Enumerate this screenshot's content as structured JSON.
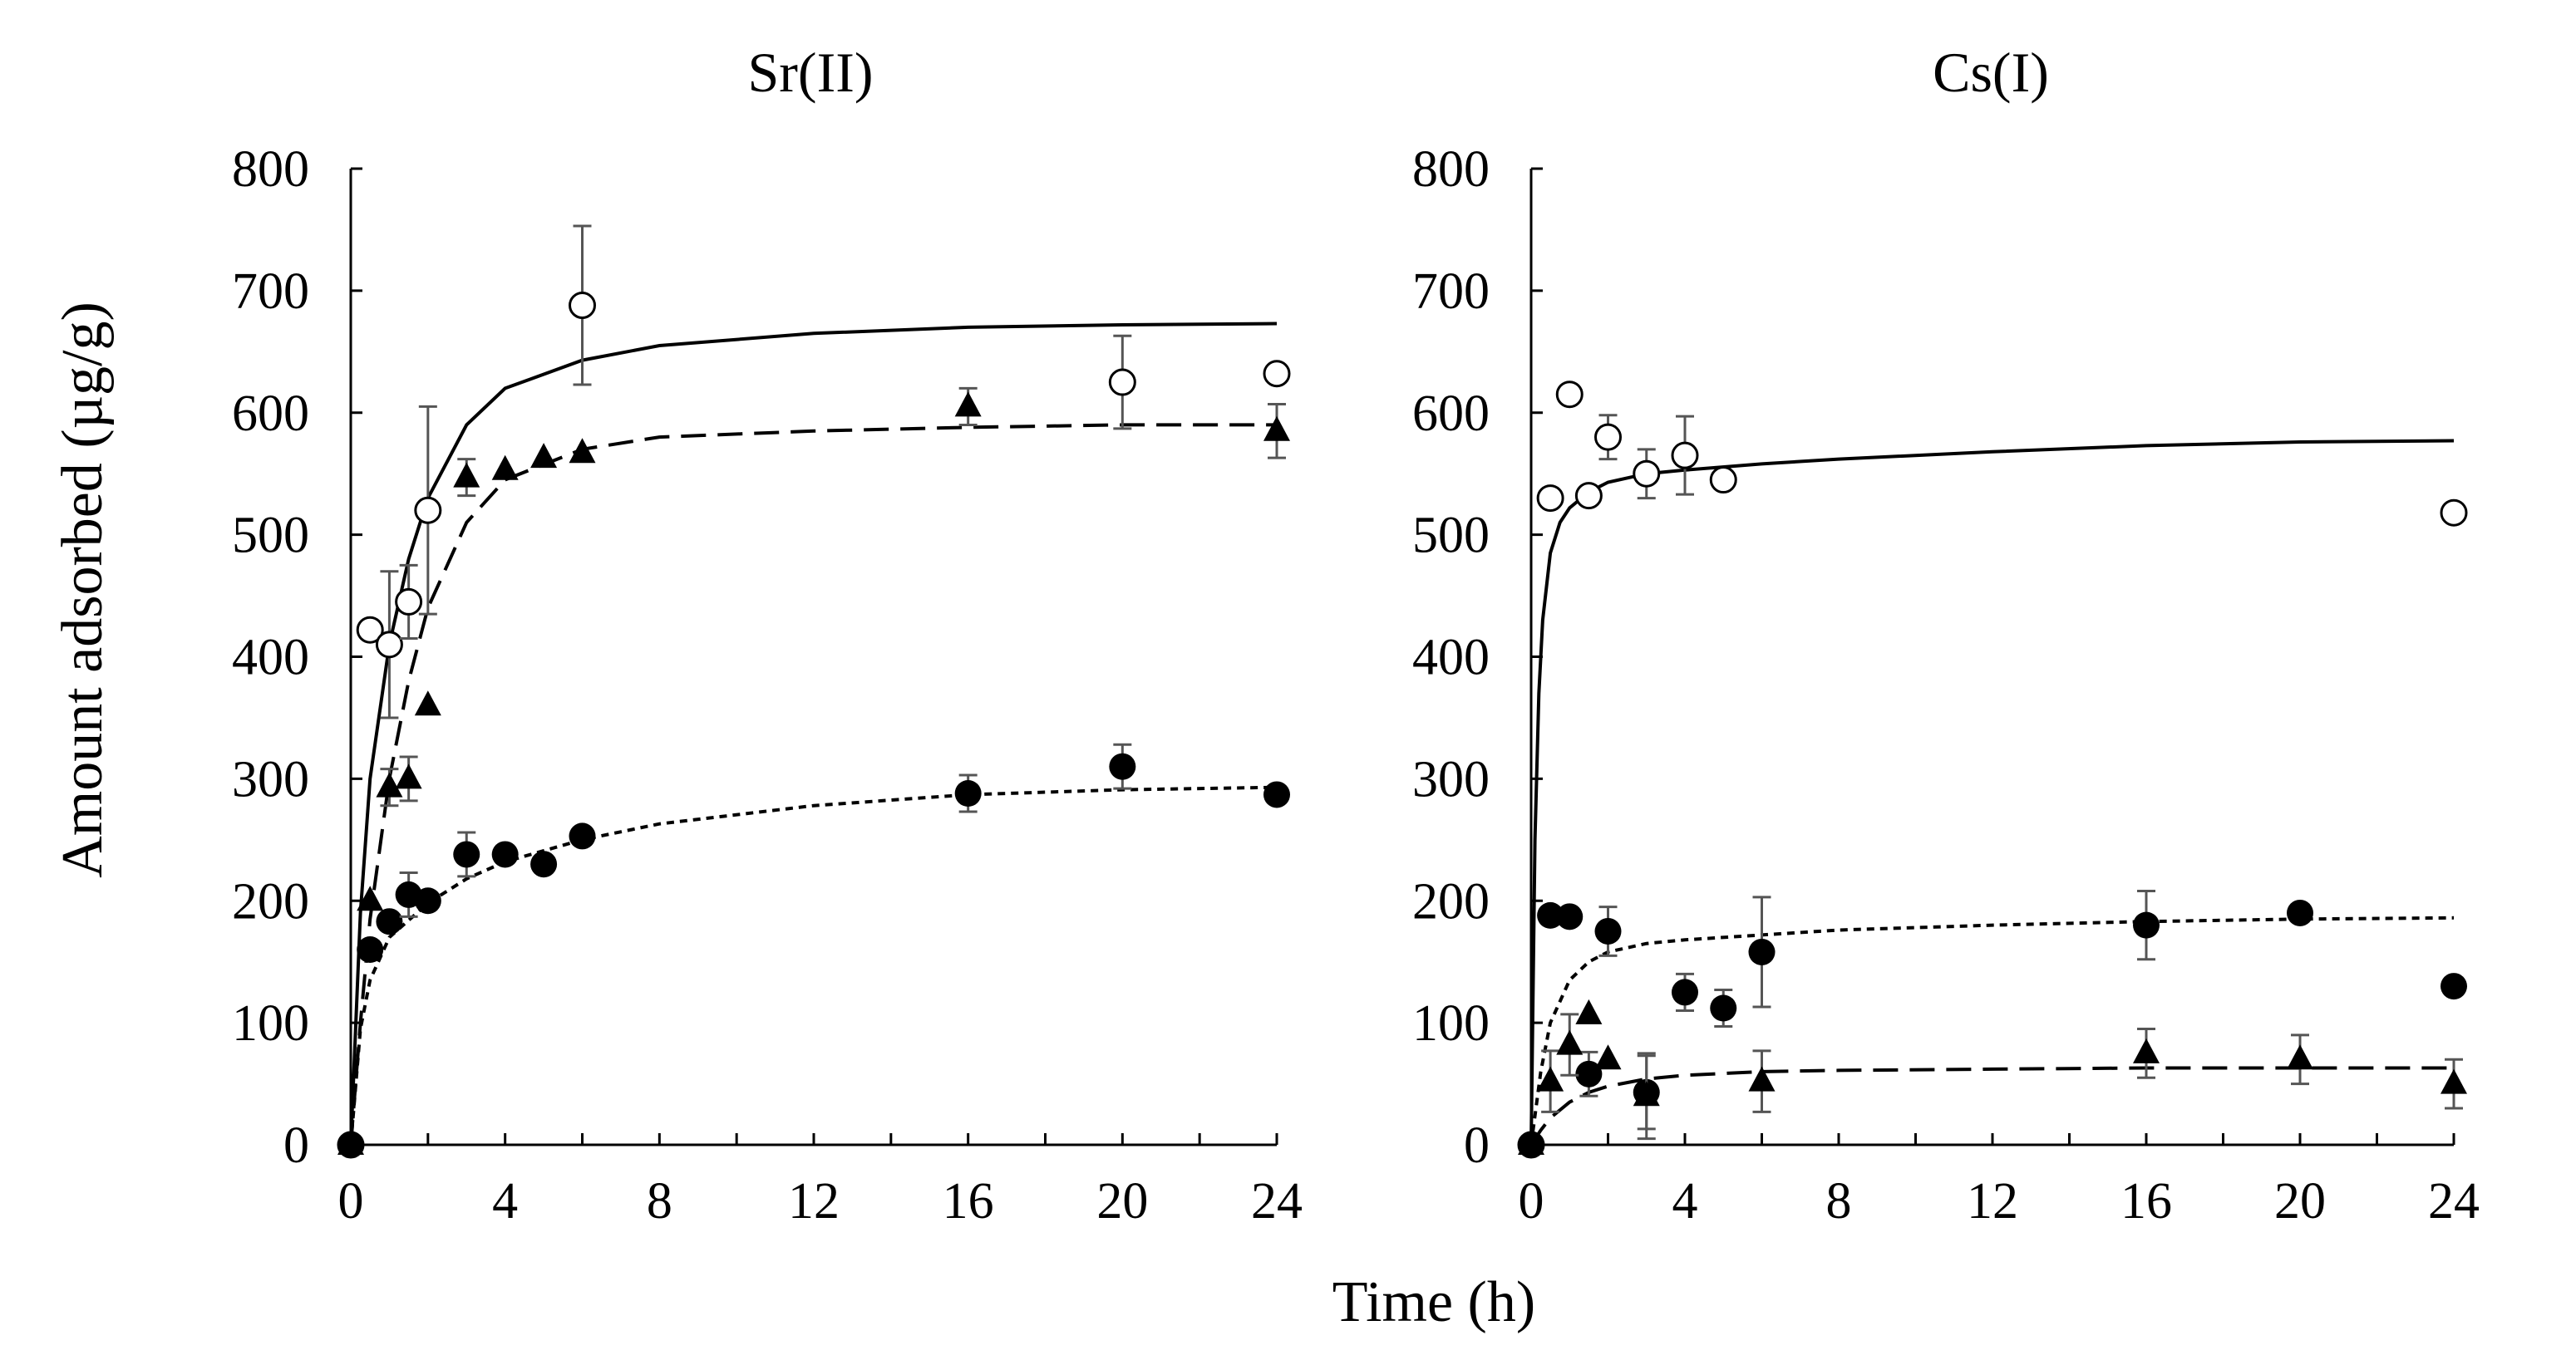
{
  "chart_data": [
    {
      "type": "scatter",
      "title": "Sr(II)",
      "xlabel": "Time (h)",
      "ylabel": "Amount adsorbed (µg/g)",
      "xlim": [
        0,
        24
      ],
      "ylim": [
        0,
        800
      ],
      "xticks": [
        0,
        4,
        8,
        12,
        16,
        20,
        24
      ],
      "yticks": [
        0,
        100,
        200,
        300,
        400,
        500,
        600,
        700,
        800
      ],
      "series": [
        {
          "name": "open-circles",
          "marker": "circle-open",
          "points": [
            {
              "x": 0,
              "y": 0,
              "err": 0
            },
            {
              "x": 0.5,
              "y": 422,
              "err": 0
            },
            {
              "x": 1,
              "y": 410,
              "err": 60
            },
            {
              "x": 1.5,
              "y": 445,
              "err": 30
            },
            {
              "x": 2,
              "y": 520,
              "err": 85
            },
            {
              "x": 6,
              "y": 688,
              "err": 65
            },
            {
              "x": 20,
              "y": 625,
              "err": 38
            },
            {
              "x": 24,
              "y": 632,
              "err": 0
            }
          ],
          "fit": {
            "style": "solid",
            "x": [
              0,
              0.25,
              0.5,
              1,
              1.5,
              2,
              3,
              4,
              6,
              8,
              12,
              16,
              20,
              24
            ],
            "y": [
              0,
              190,
              300,
              410,
              480,
              530,
              590,
              620,
              643,
              655,
              665,
              670,
              672,
              673
            ]
          }
        },
        {
          "name": "filled-triangles",
          "marker": "triangle-filled",
          "points": [
            {
              "x": 0,
              "y": 0,
              "err": 0
            },
            {
              "x": 0.5,
              "y": 200,
              "err": 0
            },
            {
              "x": 1,
              "y": 293,
              "err": 15
            },
            {
              "x": 1.5,
              "y": 300,
              "err": 18
            },
            {
              "x": 2,
              "y": 360,
              "err": 0
            },
            {
              "x": 3,
              "y": 547,
              "err": 15
            },
            {
              "x": 4,
              "y": 553,
              "err": 0
            },
            {
              "x": 5,
              "y": 563,
              "err": 0
            },
            {
              "x": 6,
              "y": 567,
              "err": 0
            },
            {
              "x": 16,
              "y": 605,
              "err": 15
            },
            {
              "x": 24,
              "y": 585,
              "err": 22
            }
          ],
          "fit": {
            "style": "dashed",
            "x": [
              0,
              0.25,
              0.5,
              1,
              1.5,
              2,
              3,
              4,
              6,
              8,
              12,
              16,
              20,
              24
            ],
            "y": [
              0,
              100,
              185,
              300,
              380,
              440,
              510,
              545,
              570,
              580,
              585,
              588,
              590,
              590
            ]
          }
        },
        {
          "name": "filled-circles",
          "marker": "circle-filled",
          "points": [
            {
              "x": 0,
              "y": 0,
              "err": 0
            },
            {
              "x": 0.5,
              "y": 160,
              "err": 0
            },
            {
              "x": 1,
              "y": 183,
              "err": 0
            },
            {
              "x": 1.5,
              "y": 205,
              "err": 18
            },
            {
              "x": 2,
              "y": 200,
              "err": 0
            },
            {
              "x": 3,
              "y": 238,
              "err": 18
            },
            {
              "x": 4,
              "y": 238,
              "err": 0
            },
            {
              "x": 5,
              "y": 230,
              "err": 0
            },
            {
              "x": 6,
              "y": 253,
              "err": 0
            },
            {
              "x": 16,
              "y": 288,
              "err": 15
            },
            {
              "x": 20,
              "y": 310,
              "err": 18
            },
            {
              "x": 24,
              "y": 287,
              "err": 0
            }
          ],
          "fit": {
            "style": "dotted",
            "x": [
              0,
              0.25,
              0.5,
              1,
              2,
              3,
              4,
              6,
              8,
              12,
              16,
              20,
              24
            ],
            "y": [
              0,
              95,
              135,
              170,
              198,
              218,
              232,
              250,
              263,
              278,
              287,
              291,
              293
            ]
          }
        }
      ]
    },
    {
      "type": "scatter",
      "title": "Cs(I)",
      "xlabel": "Time (h)",
      "ylabel": "Amount adsorbed (µg/g)",
      "xlim": [
        0,
        24
      ],
      "ylim": [
        0,
        800
      ],
      "xticks": [
        0,
        4,
        8,
        12,
        16,
        20,
        24
      ],
      "yticks": [
        0,
        100,
        200,
        300,
        400,
        500,
        600,
        700,
        800
      ],
      "series": [
        {
          "name": "open-circles",
          "marker": "circle-open",
          "points": [
            {
              "x": 0,
              "y": 0,
              "err": 0
            },
            {
              "x": 0.5,
              "y": 530,
              "err": 0
            },
            {
              "x": 1,
              "y": 615,
              "err": 0
            },
            {
              "x": 1.5,
              "y": 532,
              "err": 0
            },
            {
              "x": 2,
              "y": 580,
              "err": 18
            },
            {
              "x": 3,
              "y": 550,
              "err": 20
            },
            {
              "x": 4,
              "y": 565,
              "err": 32
            },
            {
              "x": 5,
              "y": 545,
              "err": 0
            },
            {
              "x": 24,
              "y": 518,
              "err": 0
            }
          ],
          "fit": {
            "style": "solid",
            "x": [
              0,
              0.1,
              0.2,
              0.3,
              0.5,
              0.75,
              1,
              1.5,
              2,
              3,
              4,
              6,
              8,
              12,
              16,
              20,
              24
            ],
            "y": [
              0,
              250,
              370,
              430,
              485,
              510,
              522,
              535,
              543,
              550,
              553,
              558,
              562,
              568,
              573,
              576,
              577
            ]
          }
        },
        {
          "name": "filled-circles",
          "marker": "circle-filled",
          "points": [
            {
              "x": 0,
              "y": 0,
              "err": 0
            },
            {
              "x": 0.5,
              "y": 188,
              "err": 0
            },
            {
              "x": 1,
              "y": 187,
              "err": 0
            },
            {
              "x": 1.5,
              "y": 58,
              "err": 18
            },
            {
              "x": 2,
              "y": 175,
              "err": 20
            },
            {
              "x": 3,
              "y": 43,
              "err": 30
            },
            {
              "x": 4,
              "y": 125,
              "err": 15
            },
            {
              "x": 5,
              "y": 112,
              "err": 15
            },
            {
              "x": 6,
              "y": 158,
              "err": 45
            },
            {
              "x": 16,
              "y": 180,
              "err": 28
            },
            {
              "x": 20,
              "y": 190,
              "err": 0
            },
            {
              "x": 24,
              "y": 130,
              "err": 0
            }
          ],
          "fit": {
            "style": "dotted",
            "x": [
              0,
              0.25,
              0.5,
              1,
              1.5,
              2,
              3,
              4,
              6,
              8,
              12,
              16,
              20,
              24
            ],
            "y": [
              0,
              60,
              100,
              135,
              150,
              158,
              165,
              168,
              172,
              176,
              180,
              183,
              185,
              186
            ]
          }
        },
        {
          "name": "filled-triangles",
          "marker": "triangle-filled",
          "points": [
            {
              "x": 0,
              "y": 0,
              "err": 0
            },
            {
              "x": 0.5,
              "y": 52,
              "err": 25
            },
            {
              "x": 1,
              "y": 82,
              "err": 25
            },
            {
              "x": 1.5,
              "y": 107,
              "err": 0
            },
            {
              "x": 2,
              "y": 70,
              "err": 0
            },
            {
              "x": 3,
              "y": 40,
              "err": 35
            },
            {
              "x": 6,
              "y": 52,
              "err": 25
            },
            {
              "x": 16,
              "y": 75,
              "err": 20
            },
            {
              "x": 20,
              "y": 70,
              "err": 20
            },
            {
              "x": 24,
              "y": 50,
              "err": 20
            }
          ],
          "fit": {
            "style": "dashed",
            "x": [
              0,
              0.25,
              0.5,
              1,
              1.5,
              2,
              3,
              4,
              6,
              8,
              12,
              16,
              20,
              24
            ],
            "y": [
              0,
              12,
              22,
              35,
              43,
              48,
              54,
              57,
              60,
              61,
              62,
              63,
              63,
              63
            ]
          }
        }
      ]
    }
  ],
  "shared": {
    "xlabel": "Time (h)",
    "ylabel": "Amount adsorbed (µg/g)"
  }
}
